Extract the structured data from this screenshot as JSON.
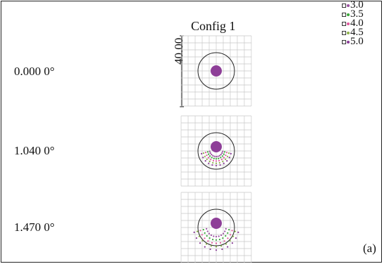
{
  "config_title": "Config 1",
  "scale_label": "40.00",
  "panel_label": "(a)",
  "rows": [
    {
      "label": "0.000 0°"
    },
    {
      "label": "1.040 0°"
    },
    {
      "label": "1.470 0°"
    }
  ],
  "legend": [
    {
      "label": "3.0",
      "color": "#9a4fa0"
    },
    {
      "label": "3.5",
      "color": "#3aa83a"
    },
    {
      "label": "4.0",
      "color": "#e0559c"
    },
    {
      "label": "4.5",
      "color": "#8cb24a"
    },
    {
      "label": "5.0",
      "color": "#8a3b96"
    }
  ],
  "colors": {
    "grid": "#c8c8c8",
    "circle": "#222222",
    "spot": "#8e3f98"
  }
}
